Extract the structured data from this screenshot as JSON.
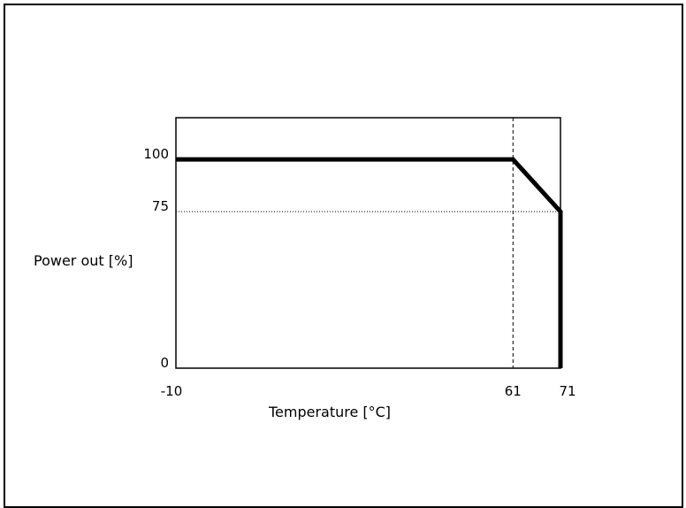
{
  "chart_data": {
    "type": "line",
    "title": "",
    "xlabel": "Temperature [°C]",
    "ylabel": "Power out [%]",
    "xlim": [
      -10,
      71
    ],
    "ylim": [
      0,
      120
    ],
    "x_ticks": [
      {
        "value": -10,
        "label": "-10"
      },
      {
        "value": 61,
        "label": "61"
      },
      {
        "value": 71,
        "label": "71"
      }
    ],
    "y_ticks": [
      {
        "value": 0,
        "label": "0"
      },
      {
        "value": 75,
        "label": "75"
      },
      {
        "value": 100,
        "label": "100"
      }
    ],
    "series": [
      {
        "x": [
          -10,
          61,
          71,
          71
        ],
        "y": [
          100,
          100,
          75,
          0
        ]
      }
    ],
    "reference_lines": [
      {
        "orientation": "vertical",
        "value": 61,
        "style": "dashed"
      },
      {
        "orientation": "horizontal",
        "value": 75,
        "style": "dotted"
      }
    ],
    "grid": false,
    "colors": {
      "line": "#000000",
      "axes": "#000000"
    }
  }
}
